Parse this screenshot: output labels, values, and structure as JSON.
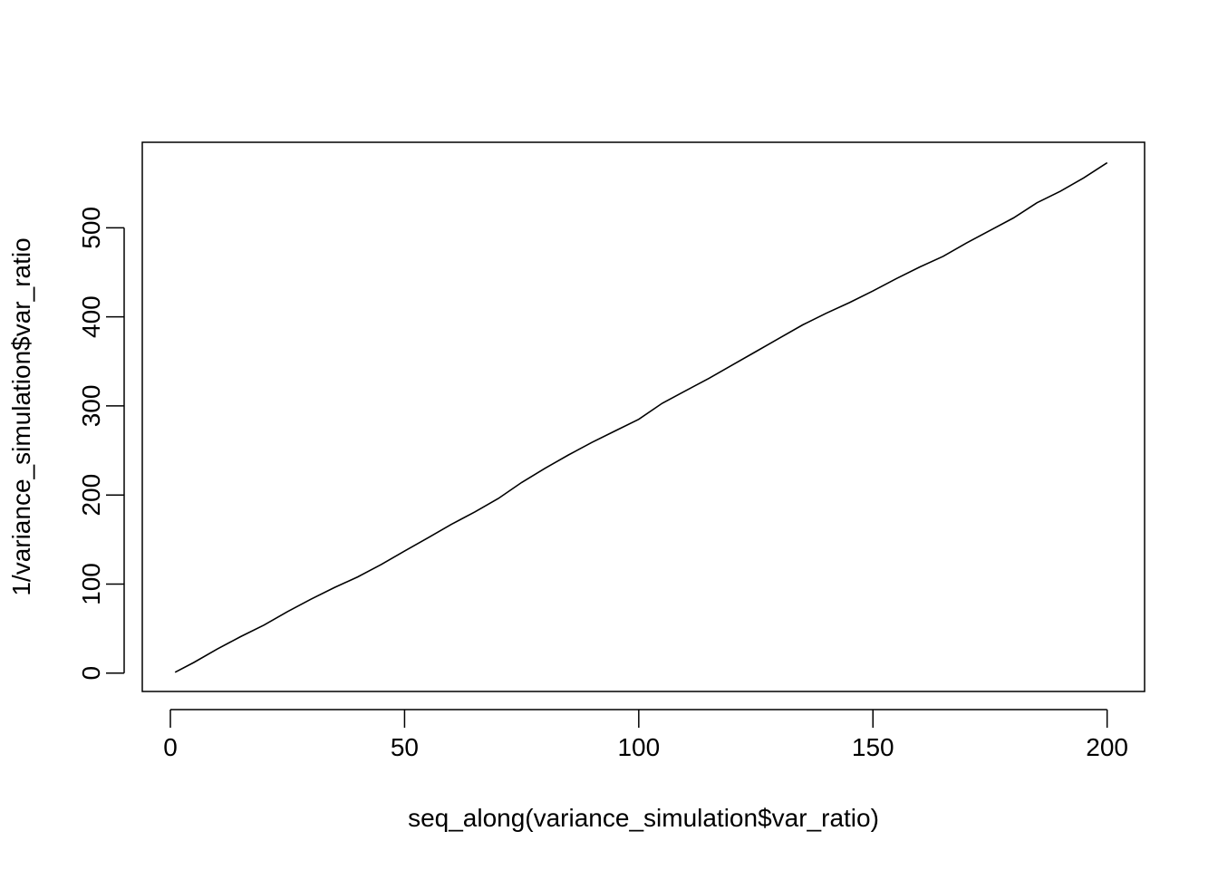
{
  "chart_data": {
    "type": "line",
    "title": "",
    "xlabel": "seq_along(variance_simulation$var_ratio)",
    "ylabel": "1/variance_simulation$var_ratio",
    "xlim": [
      -6,
      208
    ],
    "ylim": [
      -20.6,
      596
    ],
    "x_ticks": [
      0,
      50,
      100,
      150,
      200
    ],
    "y_ticks": [
      0,
      100,
      200,
      300,
      400,
      500
    ],
    "grid": false,
    "legend": "none",
    "line_color": "#000000",
    "series": [
      {
        "x": [
          1,
          5,
          10,
          15,
          20,
          25,
          30,
          35,
          40,
          45,
          50,
          55,
          60,
          65,
          70,
          75,
          80,
          85,
          90,
          95,
          100,
          105,
          110,
          115,
          120,
          125,
          130,
          135,
          140,
          145,
          150,
          155,
          160,
          165,
          170,
          175,
          180,
          185,
          190,
          195,
          200
        ],
        "y": [
          1,
          12,
          27,
          41,
          54,
          69,
          83,
          96,
          108,
          122,
          137,
          152,
          167,
          181,
          196,
          214,
          230,
          245,
          259,
          272,
          285,
          303,
          317,
          331,
          346,
          361,
          376,
          391,
          404,
          416,
          429,
          443,
          456,
          468,
          483,
          497,
          511,
          528,
          541,
          556,
          573
        ]
      }
    ]
  }
}
